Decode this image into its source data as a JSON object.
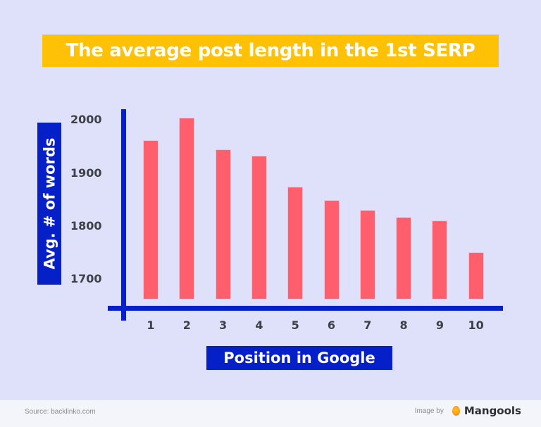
{
  "title": "The average post length in the 1st SERP",
  "colors": {
    "background": "#dfe1fb",
    "title_banner": "#ffc105",
    "axis": "#0520c9",
    "bar": "#ff5f6d",
    "tick_text": "#3d4046",
    "footer": "#f4f4fb"
  },
  "axes": {
    "ylabel": "Avg. # of words",
    "xlabel": "Position in Google",
    "yticks": [
      "2000",
      "1900",
      "1800",
      "1700"
    ],
    "xticks": [
      "1",
      "2",
      "3",
      "4",
      "5",
      "6",
      "7",
      "8",
      "9",
      "10"
    ]
  },
  "footer": {
    "source": "Source: backlinko.com",
    "credit_prefix": "Image by",
    "brand": "Mangools",
    "brand_icon": "mangools-logo-icon"
  },
  "chart_data": {
    "type": "bar",
    "title": "The average post length in the 1st SERP",
    "xlabel": "Position in Google",
    "ylabel": "Avg. # of words",
    "categories": [
      "1",
      "2",
      "3",
      "4",
      "5",
      "6",
      "7",
      "8",
      "9",
      "10"
    ],
    "values": [
      1961,
      2003,
      1943,
      1931,
      1873,
      1847,
      1829,
      1816,
      1809,
      1749
    ],
    "ylim": [
      1665,
      2020
    ],
    "yticks": [
      1700,
      1800,
      1900,
      2000
    ],
    "grid": false,
    "legend": null,
    "source": "backlinko.com"
  }
}
